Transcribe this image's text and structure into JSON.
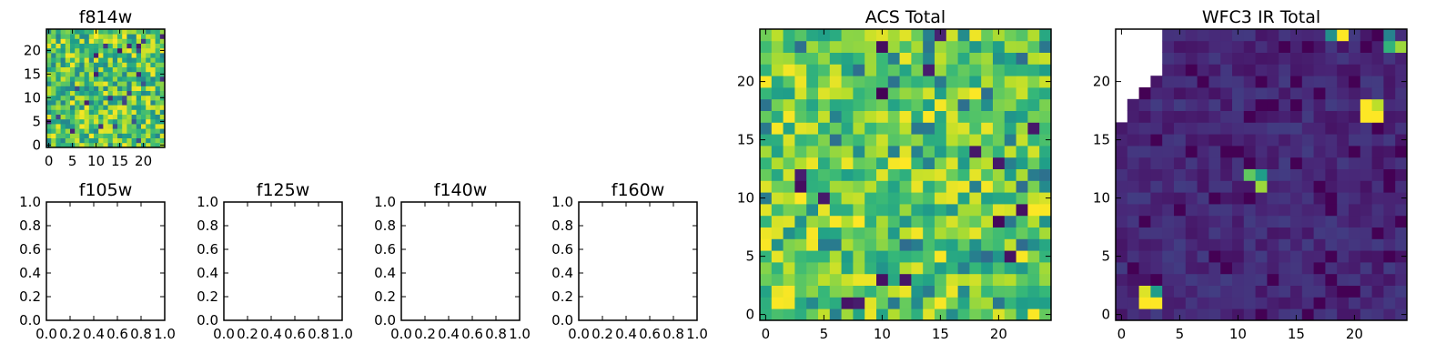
{
  "chart_data": [
    {
      "type": "heatmap",
      "title": "f814w",
      "xlabel": "",
      "ylabel": "",
      "xlim": [
        -0.5,
        24.5
      ],
      "ylim": [
        -0.5,
        24.5
      ],
      "xticks": [
        0,
        5,
        10,
        15,
        20
      ],
      "yticks": [
        0,
        5,
        10,
        15,
        20
      ],
      "colormap": "viridis",
      "grid_size": 25,
      "texture": "fine_noise",
      "seed": 814,
      "value_range": [
        0,
        1
      ]
    },
    {
      "type": "scatter",
      "title": "f105w",
      "xlim": [
        0.0,
        1.0
      ],
      "ylim": [
        0.0,
        1.0
      ],
      "xticks": [
        "0.0",
        "0.2",
        "0.4",
        "0.6",
        "0.8",
        "1.0"
      ],
      "yticks": [
        "0.0",
        "0.2",
        "0.4",
        "0.6",
        "0.8",
        "1.0"
      ],
      "values": []
    },
    {
      "type": "scatter",
      "title": "f125w",
      "xlim": [
        0.0,
        1.0
      ],
      "ylim": [
        0.0,
        1.0
      ],
      "xticks": [
        "0.0",
        "0.2",
        "0.4",
        "0.6",
        "0.8",
        "1.0"
      ],
      "yticks": [
        "0.0",
        "0.2",
        "0.4",
        "0.6",
        "0.8",
        "1.0"
      ],
      "values": []
    },
    {
      "type": "scatter",
      "title": "f140w",
      "xlim": [
        0.0,
        1.0
      ],
      "ylim": [
        0.0,
        1.0
      ],
      "xticks": [
        "0.0",
        "0.2",
        "0.4",
        "0.6",
        "0.8",
        "1.0"
      ],
      "yticks": [
        "0.0",
        "0.2",
        "0.4",
        "0.6",
        "0.8",
        "1.0"
      ],
      "values": []
    },
    {
      "type": "scatter",
      "title": "f160w",
      "xlim": [
        0.0,
        1.0
      ],
      "ylim": [
        0.0,
        1.0
      ],
      "xticks": [
        "0.0",
        "0.2",
        "0.4",
        "0.6",
        "0.8",
        "1.0"
      ],
      "yticks": [
        "0.0",
        "0.2",
        "0.4",
        "0.6",
        "0.8",
        "1.0"
      ],
      "values": []
    },
    {
      "type": "heatmap",
      "title": "ACS Total",
      "xlim": [
        -0.5,
        24.5
      ],
      "ylim": [
        -0.5,
        24.5
      ],
      "xticks": [
        0,
        5,
        10,
        15,
        20
      ],
      "yticks": [
        0,
        5,
        10,
        15,
        20
      ],
      "colormap": "viridis",
      "grid_size": 25,
      "texture": "bright_noise",
      "seed": 1234,
      "value_range": [
        0,
        1
      ]
    },
    {
      "type": "heatmap",
      "title": "WFC3 IR Total",
      "xlim": [
        -0.5,
        24.5
      ],
      "ylim": [
        -0.5,
        24.5
      ],
      "xticks": [
        0,
        5,
        10,
        15,
        20
      ],
      "yticks": [
        0,
        5,
        10,
        15,
        20
      ],
      "colormap": "viridis",
      "grid_size": 25,
      "texture": "dark_background",
      "seed": 4242,
      "value_range": [
        0,
        1
      ],
      "bright_sources": [
        {
          "x": 2,
          "y": 1,
          "value": 1.0
        },
        {
          "x": 3,
          "y": 1,
          "value": 1.0
        },
        {
          "x": 2,
          "y": 2,
          "value": 0.95
        },
        {
          "x": 3,
          "y": 2,
          "value": 0.55
        },
        {
          "x": 11,
          "y": 12,
          "value": 0.75
        },
        {
          "x": 12,
          "y": 12,
          "value": 0.55
        },
        {
          "x": 12,
          "y": 11,
          "value": 0.85
        },
        {
          "x": 21,
          "y": 17,
          "value": 1.0
        },
        {
          "x": 22,
          "y": 17,
          "value": 1.0
        },
        {
          "x": 21,
          "y": 18,
          "value": 1.0
        },
        {
          "x": 22,
          "y": 18,
          "value": 0.9
        },
        {
          "x": 19,
          "y": 24,
          "value": 1.0
        },
        {
          "x": 18,
          "y": 24,
          "value": 0.5
        },
        {
          "x": 23,
          "y": 23,
          "value": 0.65
        },
        {
          "x": 24,
          "y": 23,
          "value": 0.85
        },
        {
          "x": 23,
          "y": 24,
          "value": 0.45
        }
      ],
      "masked_region": "upper-left corner (no data)"
    }
  ]
}
